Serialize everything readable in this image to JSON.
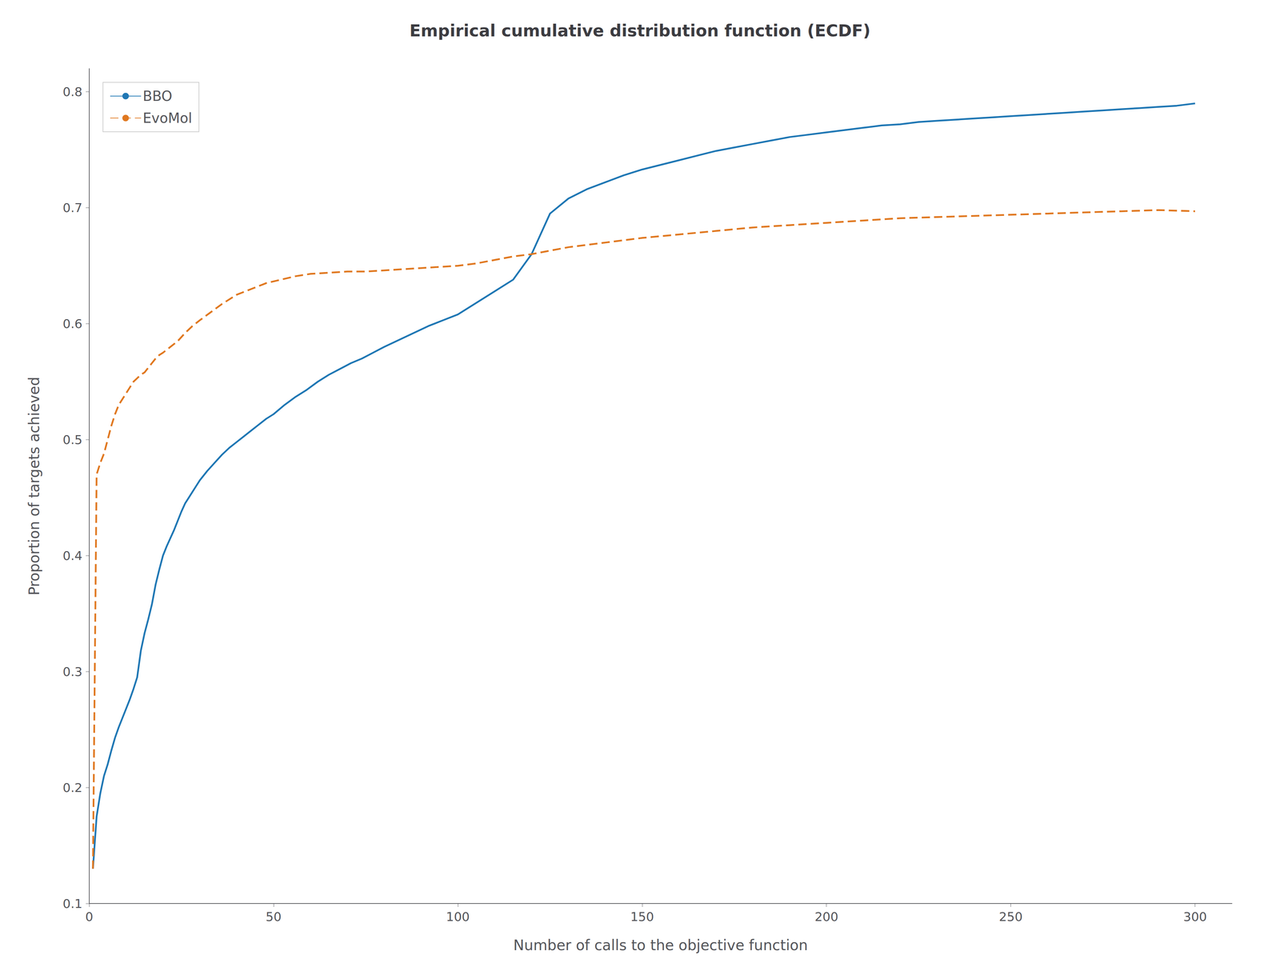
{
  "chart_data": {
    "type": "line",
    "title": "Empirical cumulative distribution function (ECDF)",
    "xlabel": "Number of calls to the objective function",
    "ylabel": "Proportion of targets achieved",
    "xlim": [
      0,
      310
    ],
    "ylim": [
      0.1,
      0.82
    ],
    "xticks": [
      0,
      50,
      100,
      150,
      200,
      250,
      300
    ],
    "yticks": [
      0.1,
      0.2,
      0.3,
      0.4,
      0.5,
      0.6,
      0.7,
      0.8
    ],
    "grid": false,
    "legend": "upper left",
    "series": [
      {
        "name": "BBO",
        "color": "#1f77b4",
        "line_style": "solid",
        "x": [
          1,
          2,
          3,
          4,
          5,
          6,
          7,
          8,
          9,
          10,
          11,
          12,
          13,
          14,
          15,
          16,
          17,
          18,
          19,
          20,
          21,
          22,
          23,
          24,
          25,
          26,
          27,
          28,
          29,
          30,
          32,
          34,
          36,
          38,
          40,
          42,
          44,
          46,
          48,
          50,
          53,
          56,
          59,
          62,
          65,
          68,
          71,
          74,
          77,
          80,
          84,
          88,
          92,
          96,
          100,
          105,
          110,
          115,
          120,
          125,
          130,
          135,
          140,
          145,
          150,
          155,
          160,
          165,
          170,
          175,
          180,
          185,
          190,
          195,
          200,
          205,
          210,
          215,
          220,
          225,
          230,
          235,
          240,
          245,
          250,
          255,
          260,
          265,
          270,
          275,
          280,
          285,
          290,
          295,
          300
        ],
        "values": [
          0.13,
          0.175,
          0.195,
          0.21,
          0.22,
          0.232,
          0.243,
          0.252,
          0.26,
          0.268,
          0.276,
          0.285,
          0.295,
          0.318,
          0.333,
          0.345,
          0.358,
          0.375,
          0.388,
          0.4,
          0.408,
          0.415,
          0.422,
          0.43,
          0.438,
          0.445,
          0.45,
          0.455,
          0.46,
          0.465,
          0.473,
          0.48,
          0.487,
          0.493,
          0.498,
          0.503,
          0.508,
          0.513,
          0.518,
          0.522,
          0.53,
          0.537,
          0.543,
          0.55,
          0.556,
          0.561,
          0.566,
          0.57,
          0.575,
          0.58,
          0.586,
          0.592,
          0.598,
          0.603,
          0.608,
          0.618,
          0.628,
          0.638,
          0.66,
          0.695,
          0.708,
          0.716,
          0.722,
          0.728,
          0.733,
          0.737,
          0.741,
          0.745,
          0.749,
          0.752,
          0.755,
          0.758,
          0.761,
          0.763,
          0.765,
          0.767,
          0.769,
          0.771,
          0.772,
          0.774,
          0.775,
          0.776,
          0.777,
          0.778,
          0.779,
          0.78,
          0.781,
          0.782,
          0.783,
          0.784,
          0.785,
          0.786,
          0.787,
          0.788,
          0.79
        ]
      },
      {
        "name": "EvoMol",
        "color": "#e07820",
        "line_style": "dashed",
        "x": [
          1,
          2,
          3,
          4,
          5,
          6,
          7,
          8,
          9,
          10,
          11,
          12,
          13,
          14,
          15,
          16,
          17,
          18,
          19,
          20,
          22,
          24,
          26,
          28,
          30,
          33,
          36,
          40,
          44,
          48,
          52,
          56,
          60,
          65,
          70,
          75,
          80,
          85,
          90,
          95,
          100,
          105,
          110,
          115,
          120,
          125,
          130,
          135,
          140,
          145,
          150,
          160,
          170,
          180,
          190,
          200,
          210,
          220,
          230,
          240,
          250,
          260,
          270,
          280,
          290,
          300
        ],
        "values": [
          0.13,
          0.47,
          0.48,
          0.488,
          0.5,
          0.512,
          0.522,
          0.53,
          0.535,
          0.54,
          0.545,
          0.55,
          0.553,
          0.556,
          0.558,
          0.562,
          0.566,
          0.57,
          0.573,
          0.575,
          0.58,
          0.585,
          0.592,
          0.598,
          0.603,
          0.61,
          0.617,
          0.625,
          0.63,
          0.635,
          0.638,
          0.641,
          0.643,
          0.644,
          0.645,
          0.645,
          0.646,
          0.647,
          0.648,
          0.649,
          0.65,
          0.652,
          0.655,
          0.658,
          0.66,
          0.663,
          0.666,
          0.668,
          0.67,
          0.672,
          0.674,
          0.677,
          0.68,
          0.683,
          0.685,
          0.687,
          0.689,
          0.691,
          0.692,
          0.693,
          0.694,
          0.695,
          0.696,
          0.697,
          0.698,
          0.697
        ]
      }
    ]
  }
}
